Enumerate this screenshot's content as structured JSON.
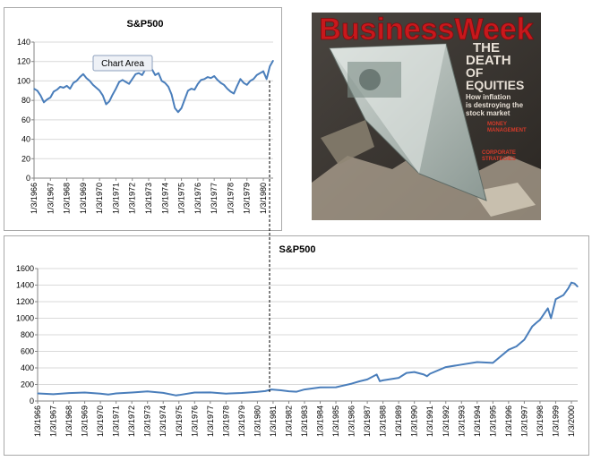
{
  "colors": {
    "series": "#4a7ebb",
    "axis": "#868686",
    "grid": "#d9d9d9",
    "tooltip_bg": "#eef1f6",
    "tooltip_border": "#8da0bd",
    "masthead": "#c8181c",
    "headline": "#e8e0d6",
    "red_headline": "#d33a2a"
  },
  "chart_data": [
    {
      "type": "line",
      "title": "S&P500",
      "xlabel": "",
      "ylabel": "",
      "ylim": [
        0,
        140
      ],
      "yticks": [
        0,
        20,
        40,
        60,
        80,
        100,
        120,
        140
      ],
      "xlim": [
        1966.0,
        1980.6
      ],
      "categories": [
        "1/3/1966",
        "1/3/1967",
        "1/3/1968",
        "1/3/1969",
        "1/3/1970",
        "1/3/1971",
        "1/3/1972",
        "1/3/1973",
        "1/3/1974",
        "1/3/1975",
        "1/3/1976",
        "1/3/1977",
        "1/3/1978",
        "1/3/1979",
        "1/3/1980"
      ],
      "grid": true,
      "legend": "none",
      "tooltip": "Chart Area",
      "series": [
        {
          "x": [
            1966.0,
            1966.2,
            1966.4,
            1966.6,
            1966.8,
            1967.0,
            1967.2,
            1967.4,
            1967.6,
            1967.8,
            1968.0,
            1968.2,
            1968.4,
            1968.6,
            1968.8,
            1969.0,
            1969.2,
            1969.4,
            1969.6,
            1969.8,
            1970.0,
            1970.2,
            1970.4,
            1970.6,
            1970.8,
            1971.0,
            1971.2,
            1971.4,
            1971.6,
            1971.8,
            1972.0,
            1972.2,
            1972.4,
            1972.6,
            1972.8,
            1973.0,
            1973.2,
            1973.4,
            1973.6,
            1973.8,
            1974.0,
            1974.2,
            1974.4,
            1974.6,
            1974.8,
            1975.0,
            1975.2,
            1975.4,
            1975.6,
            1975.8,
            1976.0,
            1976.2,
            1976.4,
            1976.6,
            1976.8,
            1977.0,
            1977.2,
            1977.4,
            1977.6,
            1977.8,
            1978.0,
            1978.2,
            1978.4,
            1978.6,
            1978.8,
            1979.0,
            1979.2,
            1979.4,
            1979.6,
            1979.8,
            1980.0,
            1980.2,
            1980.4,
            1980.6
          ],
          "values": [
            92,
            90,
            85,
            78,
            81,
            83,
            89,
            91,
            94,
            93,
            95,
            92,
            98,
            100,
            104,
            107,
            103,
            100,
            96,
            93,
            90,
            85,
            76,
            79,
            86,
            92,
            99,
            101,
            99,
            97,
            102,
            107,
            108,
            106,
            112,
            117,
            112,
            106,
            108,
            100,
            98,
            94,
            86,
            72,
            68,
            72,
            81,
            90,
            92,
            91,
            97,
            101,
            102,
            104,
            103,
            105,
            101,
            98,
            96,
            92,
            89,
            87,
            95,
            102,
            98,
            96,
            100,
            102,
            106,
            108,
            110,
            102,
            115,
            121
          ]
        }
      ]
    },
    {
      "type": "line",
      "title": "S&P500",
      "xlabel": "",
      "ylabel": "",
      "ylim": [
        0,
        1600
      ],
      "yticks": [
        0,
        200,
        400,
        600,
        800,
        1000,
        1200,
        1400,
        1600
      ],
      "xlim": [
        1966.0,
        2000.4
      ],
      "categories": [
        "1/3/1966",
        "1/3/1967",
        "1/3/1968",
        "1/3/1969",
        "1/3/1970",
        "1/3/1971",
        "1/3/1972",
        "1/3/1973",
        "1/3/1974",
        "1/3/1975",
        "1/3/1976",
        "1/3/1977",
        "1/3/1978",
        "1/3/1979",
        "1/3/1980",
        "1/3/1981",
        "1/3/1982",
        "1/3/1983",
        "1/3/1984",
        "1/3/1985",
        "1/3/1986",
        "1/3/1987",
        "1/3/1988",
        "1/3/1989",
        "1/3/1990",
        "1/3/1991",
        "1/3/1992",
        "1/3/1993",
        "1/3/1994",
        "1/3/1995",
        "1/3/1996",
        "1/3/1997",
        "1/3/1998",
        "1/3/1999",
        "1/3/2000"
      ],
      "grid": true,
      "legend": "none",
      "series": [
        {
          "x": [
            1966.0,
            1967.0,
            1968.0,
            1969.0,
            1970.0,
            1970.5,
            1971.0,
            1972.0,
            1973.0,
            1974.0,
            1974.8,
            1975.0,
            1976.0,
            1977.0,
            1978.0,
            1979.0,
            1980.0,
            1980.5,
            1980.9,
            1981.5,
            1982.0,
            1982.5,
            1983.0,
            1984.0,
            1985.0,
            1986.0,
            1986.5,
            1987.0,
            1987.6,
            1987.8,
            1988.0,
            1989.0,
            1989.5,
            1990.0,
            1990.6,
            1990.8,
            1991.0,
            1992.0,
            1993.0,
            1994.0,
            1995.0,
            1996.0,
            1996.5,
            1997.0,
            1997.5,
            1997.8,
            1998.0,
            1998.5,
            1998.7,
            1999.0,
            1999.5,
            1999.8,
            2000.0,
            2000.2,
            2000.4
          ],
          "values": [
            92,
            82,
            96,
            103,
            90,
            78,
            92,
            103,
            116,
            98,
            68,
            72,
            103,
            104,
            90,
            97,
            110,
            120,
            140,
            130,
            118,
            112,
            140,
            165,
            167,
            210,
            238,
            260,
            320,
            240,
            250,
            280,
            340,
            350,
            320,
            300,
            330,
            410,
            440,
            470,
            460,
            620,
            660,
            740,
            900,
            950,
            980,
            1120,
            1000,
            1230,
            1280,
            1360,
            1430,
            1420,
            1380
          ]
        }
      ]
    }
  ],
  "magazine": {
    "masthead": "BusinessWeek",
    "headline_line1": "THE",
    "headline_line2": "DEATH",
    "headline_line3": "OF",
    "headline_line4": "EQUITIES",
    "dek_line1": "How inflation",
    "dek_line2": "is destroying the",
    "dek_line3": "stock market",
    "story2_line1": "MONEY",
    "story2_line2": "MANAGEMENT",
    "story3_line1": "CORPORATE",
    "story3_line2": "STRATEGIES"
  }
}
